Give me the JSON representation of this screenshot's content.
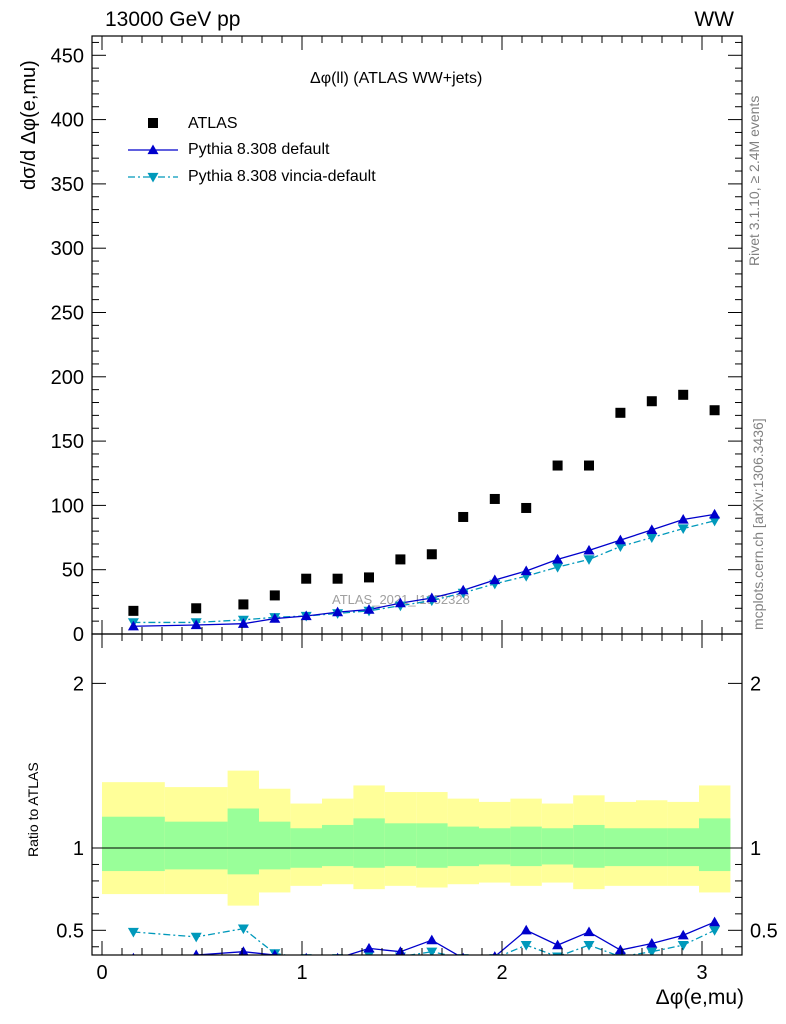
{
  "header": {
    "left": "13000 GeV pp",
    "right": "WW"
  },
  "side": {
    "rivet": "Rivet 3.1.10, ≥ 2.4M events",
    "mcplots": "mcplots.cern.ch [arXiv:1306.3436]"
  },
  "watermark": "ATLAS_2021_I1852328",
  "colors": {
    "atlas": "#000000",
    "default": "#0000cc",
    "vincia": "#0099bb",
    "band_inner": "#99ff99",
    "band_outer": "#ffff99"
  },
  "chart_data": [
    {
      "type": "scatter",
      "title": "Δφ(ll) (ATLAS WW+jets)",
      "ylabel": "dσ/d Δφ(e,mu)",
      "xlim": [
        -0.05,
        3.2
      ],
      "ylim": [
        0,
        465
      ],
      "yticks": [
        0,
        50,
        100,
        150,
        200,
        250,
        300,
        350,
        400,
        450
      ],
      "x": [
        0.157,
        0.471,
        0.707,
        0.864,
        1.021,
        1.178,
        1.335,
        1.492,
        1.649,
        1.806,
        1.964,
        2.121,
        2.278,
        2.435,
        2.592,
        2.749,
        2.906,
        3.063
      ],
      "x_edges": [
        0.0,
        0.314,
        0.628,
        0.785,
        0.942,
        1.1,
        1.257,
        1.414,
        1.571,
        1.728,
        1.885,
        2.042,
        2.199,
        2.356,
        2.513,
        2.67,
        2.827,
        2.985,
        3.142
      ],
      "series": [
        {
          "name": "ATLAS",
          "marker": "square",
          "values": [
            18,
            20,
            23,
            30,
            43,
            43,
            44,
            58,
            62,
            91,
            105,
            98,
            131,
            131,
            172,
            181,
            186,
            174
          ]
        },
        {
          "name": "Pythia 8.308 default",
          "marker": "triangle-up",
          "line": "solid",
          "values": [
            6,
            7,
            8,
            12,
            14,
            17,
            19,
            24,
            28,
            34,
            42,
            49,
            58,
            65,
            73,
            81,
            89,
            93
          ]
        },
        {
          "name": "Pythia 8.308 vincia-default",
          "marker": "triangle-down",
          "line": "dashdot",
          "values": [
            9,
            9,
            11,
            13,
            14,
            16,
            18,
            22,
            26,
            32,
            39,
            45,
            52,
            58,
            68,
            75,
            82,
            88
          ]
        }
      ]
    },
    {
      "type": "line",
      "ylabel": "Ratio to ATLAS",
      "xlabel": "Δφ(e,mu)",
      "xlim": [
        -0.05,
        3.2
      ],
      "ylim": [
        0.35,
        2.3
      ],
      "yticks": [
        0.5,
        1,
        2
      ],
      "xticks": [
        0,
        1,
        2,
        3
      ],
      "x": [
        0.157,
        0.471,
        0.707,
        0.864,
        1.021,
        1.178,
        1.335,
        1.492,
        1.649,
        1.806,
        1.964,
        2.121,
        2.278,
        2.435,
        2.592,
        2.749,
        2.906,
        3.063
      ],
      "band_inner": [
        [
          0.86,
          1.19
        ],
        [
          0.87,
          1.16
        ],
        [
          0.84,
          1.24
        ],
        [
          0.87,
          1.16
        ],
        [
          0.88,
          1.12
        ],
        [
          0.89,
          1.14
        ],
        [
          0.88,
          1.18
        ],
        [
          0.89,
          1.15
        ],
        [
          0.88,
          1.15
        ],
        [
          0.89,
          1.13
        ],
        [
          0.9,
          1.12
        ],
        [
          0.89,
          1.13
        ],
        [
          0.9,
          1.12
        ],
        [
          0.88,
          1.14
        ],
        [
          0.89,
          1.12
        ],
        [
          0.89,
          1.12
        ],
        [
          0.89,
          1.12
        ],
        [
          0.86,
          1.18
        ]
      ],
      "band_outer": [
        [
          0.72,
          1.4
        ],
        [
          0.72,
          1.37
        ],
        [
          0.65,
          1.47
        ],
        [
          0.73,
          1.36
        ],
        [
          0.77,
          1.27
        ],
        [
          0.78,
          1.3
        ],
        [
          0.75,
          1.38
        ],
        [
          0.77,
          1.34
        ],
        [
          0.76,
          1.34
        ],
        [
          0.78,
          1.3
        ],
        [
          0.79,
          1.28
        ],
        [
          0.77,
          1.3
        ],
        [
          0.79,
          1.27
        ],
        [
          0.75,
          1.32
        ],
        [
          0.77,
          1.28
        ],
        [
          0.77,
          1.29
        ],
        [
          0.77,
          1.28
        ],
        [
          0.73,
          1.38
        ]
      ],
      "series": [
        {
          "name": "Pythia 8.308 default",
          "values": [
            0.33,
            0.35,
            0.37,
            0.35,
            0.33,
            0.33,
            0.39,
            0.37,
            0.44,
            0.33,
            0.34,
            0.5,
            0.41,
            0.49,
            0.38,
            0.42,
            0.47,
            0.55
          ]
        },
        {
          "name": "Pythia 8.308 vincia-default",
          "values": [
            0.49,
            0.46,
            0.51,
            0.36,
            0.33,
            0.33,
            0.35,
            0.34,
            0.37,
            0.33,
            0.33,
            0.41,
            0.34,
            0.41,
            0.34,
            0.37,
            0.41,
            0.5
          ]
        }
      ]
    }
  ]
}
